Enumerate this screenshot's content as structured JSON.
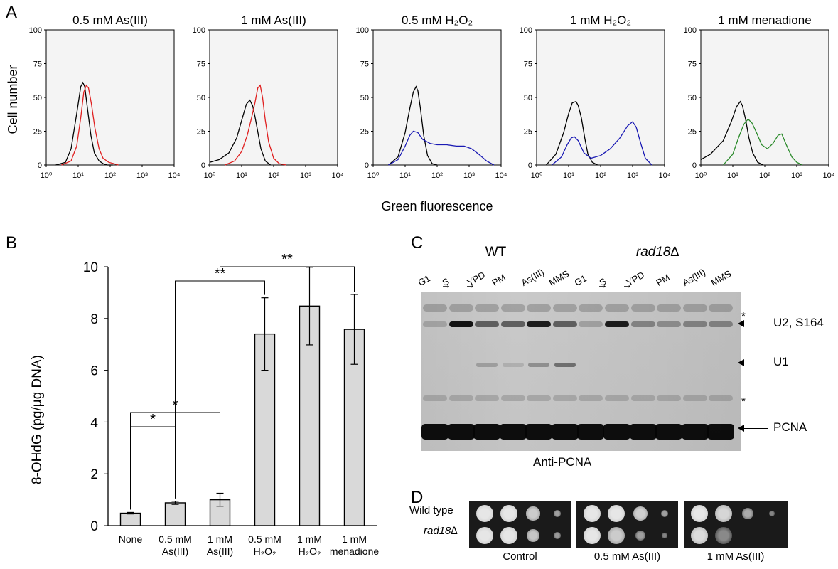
{
  "panel_letters": {
    "a": "A",
    "b": "B",
    "c": "C",
    "d": "D"
  },
  "panel_a": {
    "ylabel": "Cell number",
    "xlabel": "Green fluorescence",
    "y_ticks": [
      0,
      25,
      50,
      75,
      100
    ],
    "x_tick_labels": [
      "10⁰",
      "10¹",
      "10²",
      "10³",
      "10⁴"
    ],
    "colors": {
      "control": "#000000",
      "red": "#e02020",
      "blue": "#1a1ab4",
      "green": "#2a8a2a"
    }
  },
  "chart_data": [
    {
      "type": "line",
      "title": "0.5 mM As(III)",
      "xscale": "log",
      "xlim": [
        1,
        10000
      ],
      "ylim": [
        0,
        100
      ],
      "series": [
        {
          "color": "#000000",
          "x": [
            2,
            4,
            6,
            9,
            12,
            14,
            16,
            20,
            25,
            32,
            45,
            60,
            80,
            120
          ],
          "values": [
            0,
            2,
            12,
            38,
            58,
            61,
            58,
            40,
            22,
            9,
            3,
            1,
            0,
            0
          ]
        },
        {
          "color": "#e02020",
          "x": [
            3,
            6,
            9,
            12,
            15,
            18,
            21,
            26,
            33,
            45,
            60,
            90,
            130,
            180
          ],
          "values": [
            0,
            3,
            14,
            35,
            54,
            59,
            57,
            45,
            28,
            12,
            5,
            2,
            1,
            0
          ]
        }
      ]
    },
    {
      "type": "line",
      "title": "1 mM As(III)",
      "xscale": "log",
      "xlim": [
        1,
        10000
      ],
      "ylim": [
        0,
        100
      ],
      "series": [
        {
          "color": "#000000",
          "x": [
            1,
            2,
            4,
            7,
            10,
            14,
            18,
            22,
            26,
            30,
            40,
            55,
            80
          ],
          "values": [
            2,
            4,
            9,
            20,
            33,
            45,
            48,
            44,
            36,
            28,
            12,
            3,
            0
          ]
        },
        {
          "color": "#e02020",
          "x": [
            3,
            6,
            10,
            15,
            20,
            26,
            32,
            38,
            45,
            55,
            70,
            100,
            150,
            250
          ],
          "values": [
            0,
            3,
            10,
            22,
            34,
            46,
            57,
            59,
            50,
            33,
            17,
            5,
            1,
            0
          ]
        }
      ]
    },
    {
      "type": "line",
      "title": "0.5 mM H₂O₂",
      "xscale": "log",
      "xlim": [
        1,
        10000
      ],
      "ylim": [
        0,
        100
      ],
      "series": [
        {
          "color": "#000000",
          "x": [
            3,
            6,
            10,
            14,
            18,
            22,
            25,
            30,
            38,
            50,
            70,
            100
          ],
          "values": [
            0,
            6,
            24,
            42,
            54,
            58,
            55,
            42,
            22,
            7,
            1,
            0
          ]
        },
        {
          "color": "#1a1ab4",
          "x": [
            3,
            6,
            10,
            14,
            18,
            25,
            35,
            60,
            100,
            200,
            400,
            700,
            1200,
            2000,
            3500,
            6000
          ],
          "values": [
            0,
            4,
            14,
            22,
            25,
            24,
            19,
            16,
            15,
            15,
            14,
            14,
            12,
            8,
            3,
            0
          ]
        }
      ]
    },
    {
      "type": "line",
      "title": "1 mM H₂O₂",
      "xscale": "log",
      "xlim": [
        1,
        10000
      ],
      "ylim": [
        0,
        100
      ],
      "series": [
        {
          "color": "#000000",
          "x": [
            2,
            4,
            7,
            10,
            13,
            17,
            20,
            25,
            32,
            40,
            55,
            80
          ],
          "values": [
            0,
            8,
            24,
            38,
            46,
            47,
            44,
            35,
            20,
            8,
            2,
            0
          ]
        },
        {
          "color": "#1a1ab4",
          "x": [
            3,
            6,
            9,
            12,
            15,
            20,
            30,
            50,
            100,
            200,
            400,
            700,
            1000,
            1300,
            1800,
            2500,
            4000
          ],
          "values": [
            0,
            6,
            15,
            20,
            21,
            18,
            9,
            5,
            7,
            12,
            20,
            29,
            32,
            28,
            16,
            5,
            0
          ]
        }
      ]
    },
    {
      "type": "line",
      "title": "1 mM menadione",
      "xscale": "log",
      "xlim": [
        1,
        10000
      ],
      "ylim": [
        0,
        100
      ],
      "series": [
        {
          "color": "#000000",
          "x": [
            1,
            2,
            5,
            9,
            13,
            17,
            20,
            25,
            32,
            42,
            60,
            90
          ],
          "values": [
            4,
            8,
            18,
            32,
            43,
            47,
            44,
            34,
            20,
            9,
            2,
            0
          ]
        },
        {
          "color": "#2a8a2a",
          "x": [
            5,
            10,
            15,
            22,
            30,
            40,
            55,
            80,
            120,
            180,
            260,
            340,
            450,
            700,
            1000,
            1500
          ],
          "values": [
            0,
            8,
            20,
            30,
            34,
            31,
            24,
            15,
            12,
            16,
            22,
            23,
            16,
            6,
            2,
            0
          ]
        }
      ]
    },
    {
      "type": "bar",
      "ylabel": "8-OHdG (pg/µg DNA)",
      "ylim": [
        0,
        10
      ],
      "y_ticks": [
        0,
        2,
        4,
        6,
        8,
        10
      ],
      "categories": [
        [
          "None"
        ],
        [
          "0.5 mM",
          "As(III)"
        ],
        [
          "1 mM",
          "As(III)"
        ],
        [
          "0.5 mM",
          "H₂O₂"
        ],
        [
          "1 mM",
          "H₂O₂"
        ],
        [
          "1 mM",
          "menadione"
        ]
      ],
      "values": [
        0.48,
        0.88,
        1.0,
        7.4,
        8.48,
        7.58
      ],
      "errors": [
        0.03,
        0.06,
        0.25,
        1.4,
        1.5,
        1.35
      ],
      "bar_color": "#d9d9d9",
      "significance": [
        {
          "from": 0,
          "to": 1,
          "label": "*"
        },
        {
          "from": 0,
          "to": 2,
          "label": "*"
        },
        {
          "from": 1,
          "to": 3,
          "label": "**"
        },
        {
          "from": 2,
          "to": 5,
          "label": "**"
        }
      ]
    }
  ],
  "panel_c": {
    "group_wt": "WT",
    "group_mut": "rad18∆",
    "lanes_wt": [
      "G1",
      "S",
      "YPD",
      "PM",
      "As(III)",
      "MMS"
    ],
    "lanes_mut": [
      "G1",
      "S",
      "YPD",
      "PM",
      "As(III)",
      "MMS"
    ],
    "arrow_glyph": "→",
    "band_labels": [
      "U2, S164",
      "U1",
      "PCNA"
    ],
    "asterisk": "*",
    "caption": "Anti-PCNA"
  },
  "panel_d": {
    "rows": [
      "Wild type",
      "rad18∆"
    ],
    "conditions": [
      "Control",
      "0.5 mM As(III)",
      "1 mM As(III)"
    ]
  }
}
